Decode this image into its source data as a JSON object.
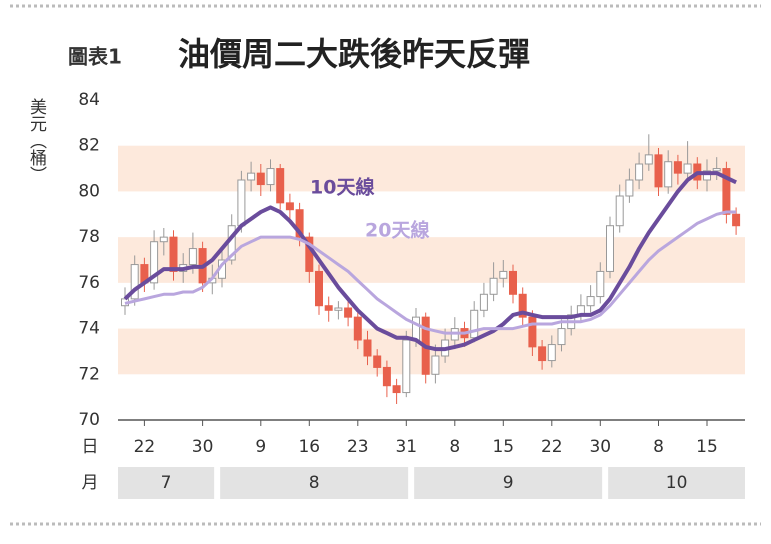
{
  "chart_data": {
    "type": "candlestick",
    "label": "圖表1",
    "title": "油價周二大跌後昨天反彈",
    "y_label": "美元（桶）",
    "day_row_label": "日",
    "month_row_label": "月",
    "categories": [
      null,
      null,
      "22",
      null,
      null,
      null,
      null,
      null,
      "30",
      null,
      null,
      null,
      null,
      null,
      "9",
      null,
      null,
      null,
      null,
      "16",
      null,
      null,
      null,
      null,
      "23",
      null,
      null,
      null,
      null,
      "31",
      null,
      null,
      null,
      null,
      "8",
      null,
      null,
      null,
      null,
      "15",
      null,
      null,
      null,
      null,
      "22",
      null,
      null,
      null,
      null,
      "30",
      null,
      null,
      null,
      null,
      null,
      "8",
      null,
      null,
      null,
      null,
      "15",
      null,
      null,
      null
    ],
    "months": [
      {
        "label": "7",
        "days": 10
      },
      {
        "label": "8",
        "days": 20
      },
      {
        "label": "9",
        "days": 20
      },
      {
        "label": "10",
        "days": 14
      }
    ],
    "open": [
      75.0,
      75.3,
      76.8,
      76.0,
      77.8,
      78.0,
      76.5,
      76.8,
      77.5,
      76.0,
      76.2,
      77.0,
      78.5,
      80.5,
      80.8,
      80.3,
      81.0,
      79.5,
      79.2,
      78.0,
      76.5,
      75.0,
      74.8,
      74.9,
      74.5,
      73.5,
      72.8,
      72.3,
      71.5,
      71.2,
      73.5,
      74.5,
      72.0,
      72.8,
      73.5,
      74.0,
      73.6,
      74.8,
      75.5,
      76.2,
      76.5,
      75.5,
      74.5,
      73.2,
      72.6,
      73.3,
      74.0,
      74.6,
      75.0,
      75.4,
      76.5,
      78.5,
      79.8,
      80.5,
      81.2,
      81.6,
      80.2,
      81.3,
      80.8,
      81.2,
      80.5,
      80.9,
      81.0,
      79.0
    ],
    "high": [
      75.8,
      77.2,
      77.1,
      78.3,
      78.4,
      78.3,
      77.3,
      78.2,
      77.8,
      76.8,
      77.5,
      79.0,
      80.9,
      81.3,
      81.2,
      81.4,
      81.2,
      79.9,
      79.5,
      78.2,
      76.8,
      75.4,
      75.2,
      75.3,
      74.8,
      73.9,
      73.1,
      72.6,
      71.8,
      73.9,
      74.9,
      74.7,
      73.3,
      74.0,
      74.5,
      74.3,
      75.2,
      76.0,
      76.9,
      77.0,
      76.8,
      75.8,
      74.8,
      73.5,
      73.7,
      74.4,
      75.0,
      75.5,
      75.9,
      76.9,
      78.9,
      80.3,
      81.0,
      81.7,
      82.5,
      81.9,
      81.8,
      81.6,
      82.2,
      81.5,
      81.4,
      81.5,
      81.3,
      79.3
    ],
    "low": [
      74.6,
      75.0,
      75.6,
      75.7,
      77.2,
      76.1,
      76.0,
      76.4,
      75.6,
      75.5,
      75.8,
      76.8,
      78.2,
      80.0,
      79.8,
      80.0,
      79.2,
      78.7,
      77.6,
      76.0,
      74.6,
      74.3,
      74.4,
      74.1,
      73.1,
      72.4,
      71.9,
      71.0,
      70.7,
      71.0,
      73.2,
      71.6,
      71.6,
      72.5,
      73.1,
      73.2,
      73.4,
      74.5,
      75.2,
      75.8,
      75.1,
      74.1,
      72.8,
      72.2,
      72.3,
      73.0,
      73.7,
      74.3,
      74.7,
      75.1,
      76.2,
      78.2,
      79.5,
      80.1,
      80.9,
      79.8,
      79.9,
      80.3,
      80.5,
      80.1,
      80.0,
      80.5,
      78.6,
      78.1
    ],
    "close": [
      75.3,
      76.8,
      76.0,
      77.8,
      78.0,
      76.5,
      76.8,
      77.5,
      76.0,
      76.2,
      77.0,
      78.5,
      80.5,
      80.8,
      80.3,
      81.0,
      79.5,
      79.2,
      78.0,
      76.5,
      75.0,
      74.8,
      74.9,
      74.5,
      73.5,
      72.8,
      72.3,
      71.5,
      71.2,
      73.5,
      74.5,
      72.0,
      72.8,
      73.5,
      74.0,
      73.6,
      74.8,
      75.5,
      76.2,
      76.5,
      75.5,
      74.5,
      73.2,
      72.6,
      73.3,
      74.0,
      74.6,
      75.0,
      75.4,
      76.5,
      78.5,
      79.8,
      80.5,
      81.2,
      81.6,
      80.2,
      81.3,
      80.8,
      81.2,
      80.5,
      80.9,
      81.0,
      79.0,
      78.5
    ],
    "up_color": "#ffffff",
    "down_color": "#e8604c",
    "series": [
      {
        "name": "10天線",
        "color": "#6a4c9c",
        "values": [
          75.3,
          75.7,
          76.0,
          76.3,
          76.6,
          76.6,
          76.6,
          76.7,
          76.7,
          77.0,
          77.5,
          78.0,
          78.5,
          78.8,
          79.1,
          79.3,
          79.1,
          78.7,
          78.2,
          77.6,
          77.0,
          76.4,
          75.8,
          75.3,
          74.8,
          74.4,
          74.0,
          73.8,
          73.6,
          73.6,
          73.5,
          73.2,
          73.1,
          73.1,
          73.2,
          73.3,
          73.5,
          73.7,
          73.9,
          74.2,
          74.6,
          74.7,
          74.6,
          74.5,
          74.5,
          74.5,
          74.5,
          74.6,
          74.6,
          74.8,
          75.3,
          76.0,
          76.7,
          77.5,
          78.2,
          78.8,
          79.4,
          80.0,
          80.5,
          80.8,
          80.8,
          80.8,
          80.6,
          80.4
        ]
      },
      {
        "name": "20天線",
        "color": "#b9a6de",
        "values": [
          75.1,
          75.2,
          75.3,
          75.4,
          75.5,
          75.5,
          75.6,
          75.6,
          75.8,
          76.2,
          76.8,
          77.2,
          77.6,
          77.8,
          78.0,
          78.0,
          78.0,
          78.0,
          77.9,
          77.7,
          77.4,
          77.1,
          76.8,
          76.5,
          76.1,
          75.7,
          75.3,
          75.0,
          74.7,
          74.4,
          74.2,
          74.0,
          73.9,
          73.8,
          73.8,
          73.8,
          73.9,
          74.0,
          74.0,
          74.0,
          74.0,
          74.1,
          74.2,
          74.2,
          74.2,
          74.3,
          74.3,
          74.3,
          74.4,
          74.6,
          75.0,
          75.5,
          76.0,
          76.5,
          77.0,
          77.4,
          77.7,
          78.0,
          78.3,
          78.6,
          78.8,
          79.0,
          79.1,
          79.1
        ]
      }
    ],
    "ylim": [
      70,
      84
    ],
    "yticks": [
      70,
      72,
      74,
      76,
      78,
      80,
      82,
      84
    ],
    "grid": "bands"
  }
}
